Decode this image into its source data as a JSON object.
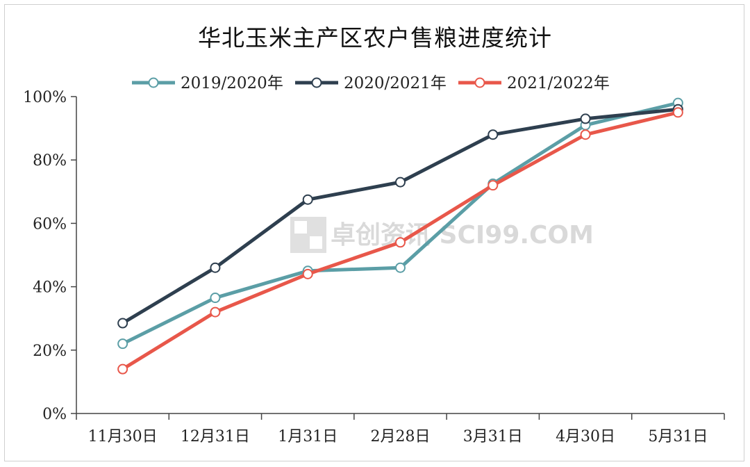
{
  "chart_data": {
    "type": "line",
    "title": "华北玉米主产区农户售粮进度统计",
    "categories": [
      "11月30日",
      "12月31日",
      "1月31日",
      "2月28日",
      "3月31日",
      "4月30日",
      "5月31日"
    ],
    "ylim": [
      0,
      100
    ],
    "yticks": [
      "0%",
      "20%",
      "40%",
      "60%",
      "80%",
      "100%"
    ],
    "grid": false,
    "legend_position": "top",
    "watermark": "卓创资讯 SCI99.COM",
    "series": [
      {
        "name": "2019/2020年",
        "color": "#5b9ea6",
        "values": [
          22,
          36.5,
          45,
          46,
          72.5,
          91,
          98
        ]
      },
      {
        "name": "2020/2021年",
        "color": "#2e3f4f",
        "values": [
          28.5,
          46,
          67.5,
          73,
          88,
          93,
          96
        ]
      },
      {
        "name": "2021/2022年",
        "color": "#e8574a",
        "values": [
          14,
          32,
          44,
          54,
          72,
          88,
          95
        ]
      }
    ]
  }
}
